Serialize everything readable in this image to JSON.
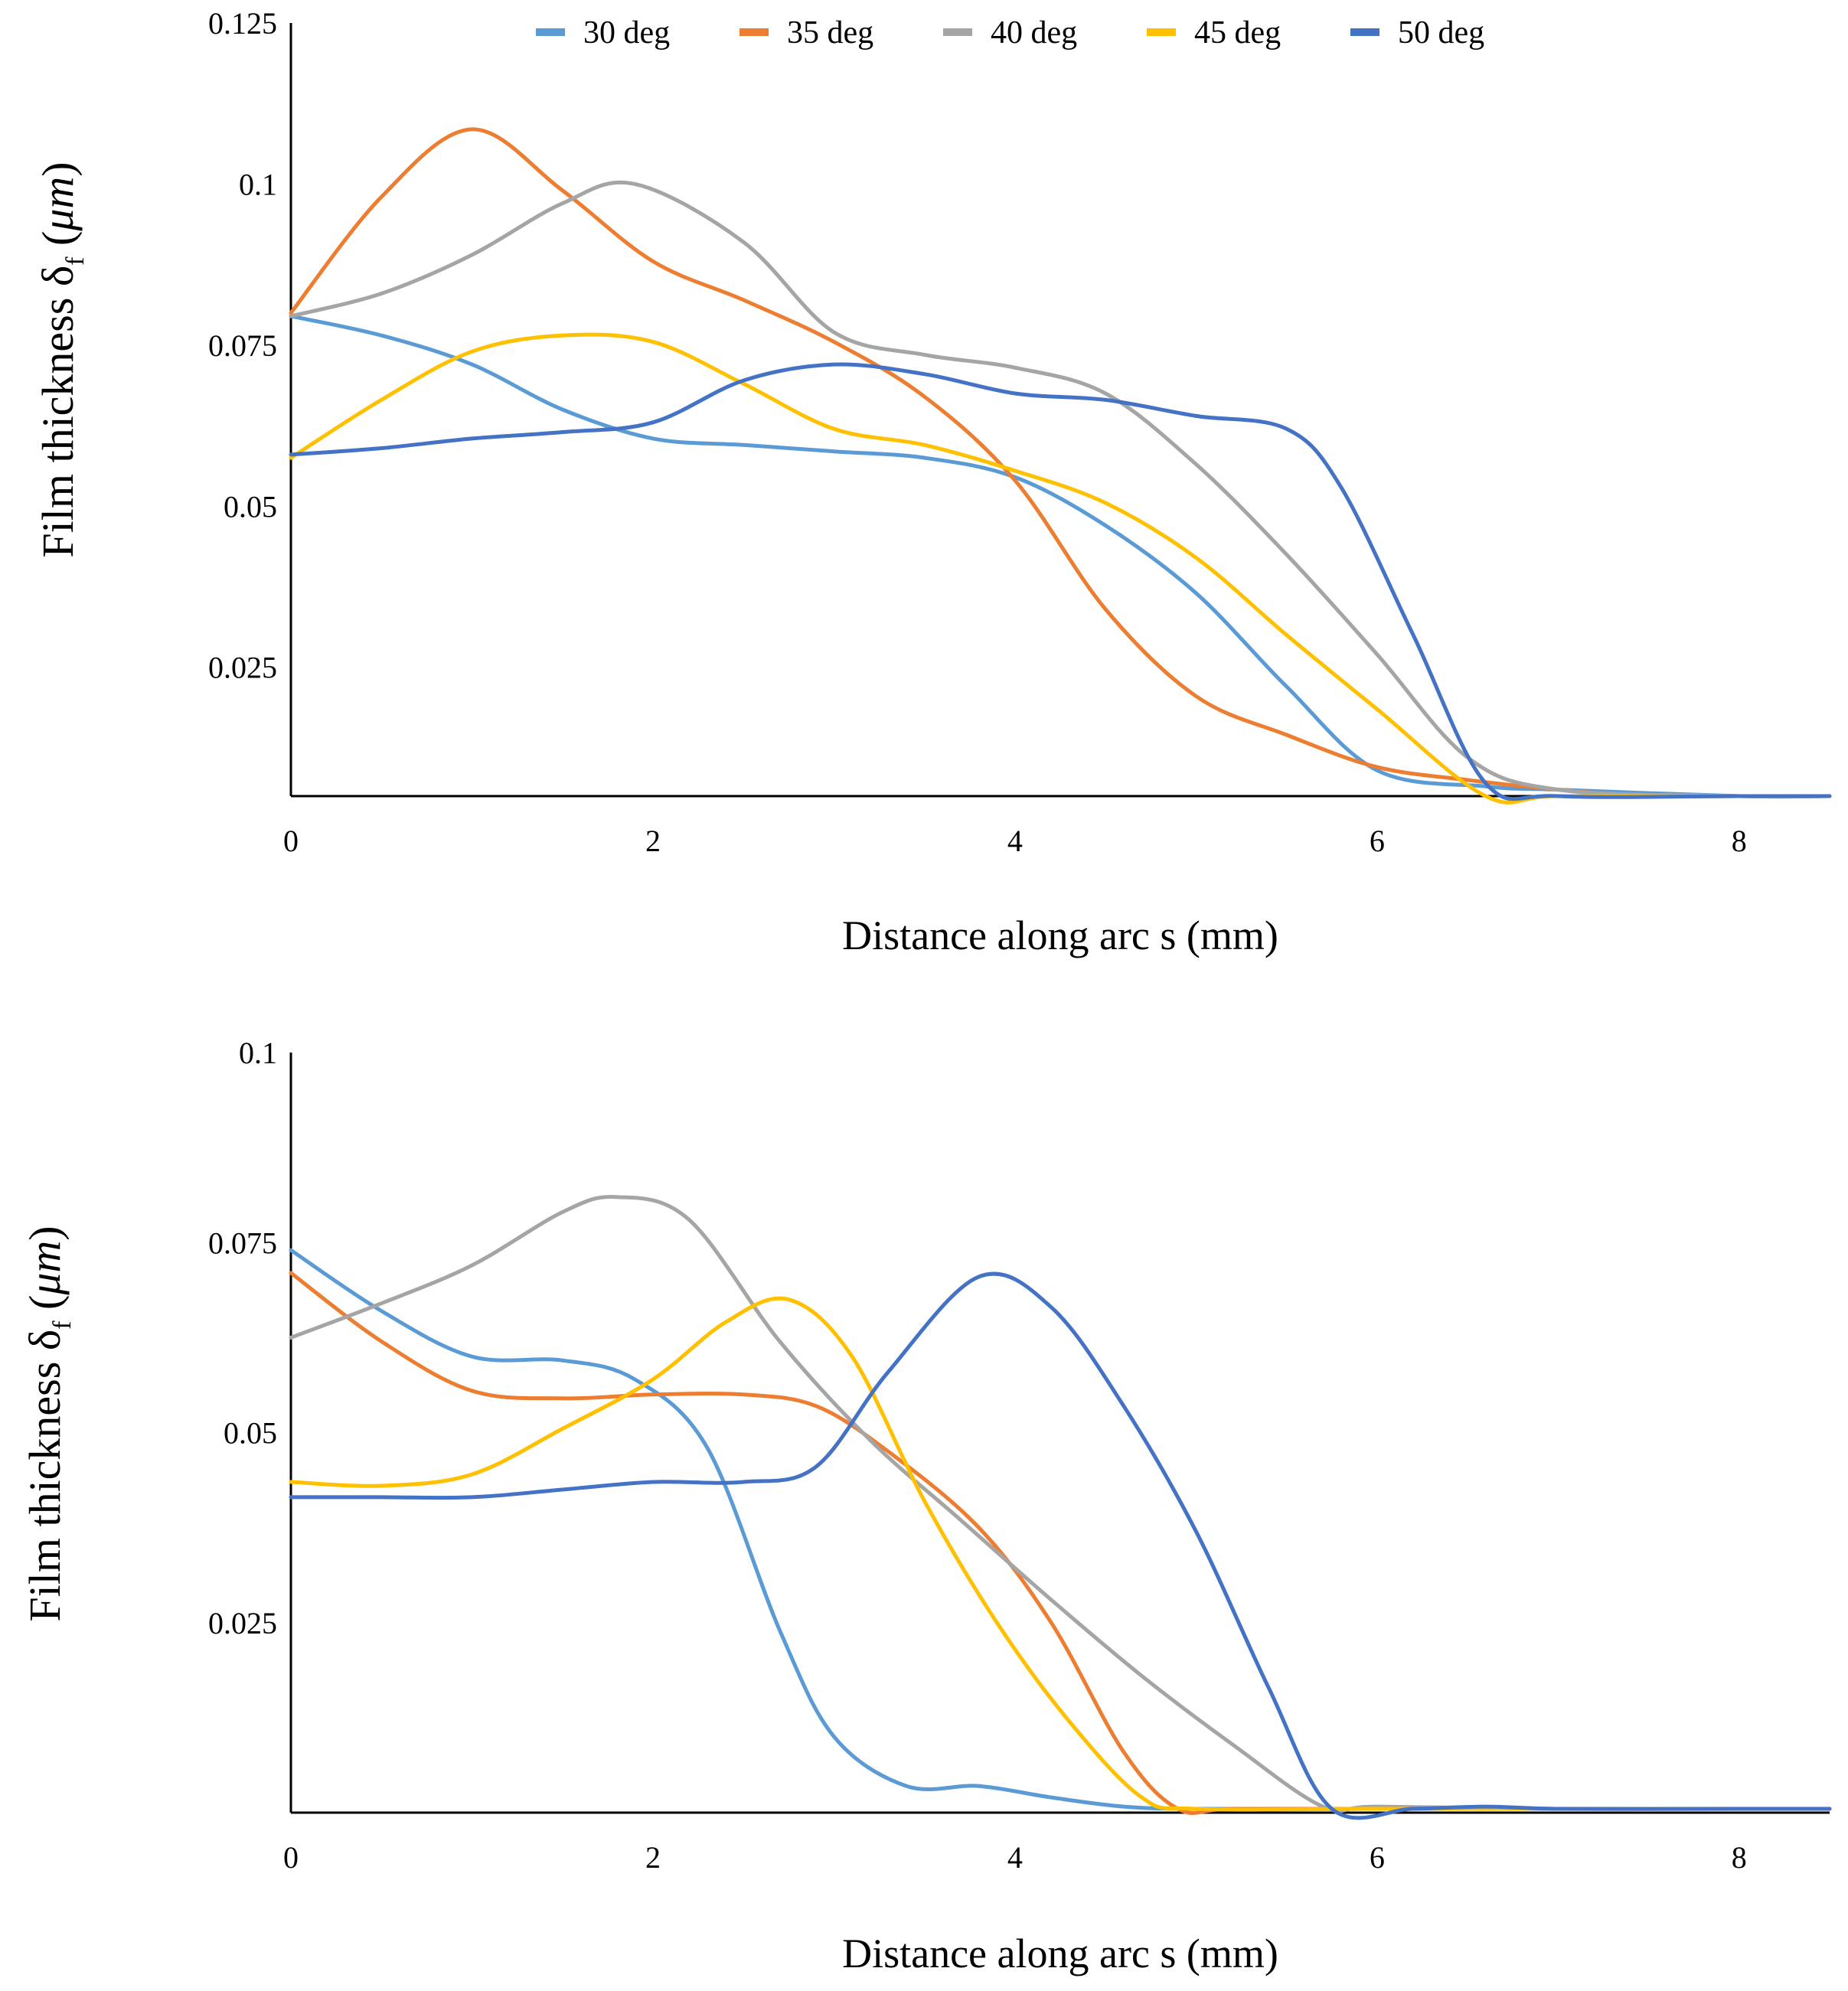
{
  "legend": [
    {
      "label": "30 deg",
      "color": "#5b9bd5"
    },
    {
      "label": "35 deg",
      "color": "#ed7d31"
    },
    {
      "label": "40 deg",
      "color": "#a5a5a5"
    },
    {
      "label": "45 deg",
      "color": "#ffc000"
    },
    {
      "label": "50 deg",
      "color": "#4472c4"
    }
  ],
  "chart_data": [
    {
      "type": "line",
      "title": "",
      "xlabel": "Distance along arc s (mm)",
      "ylabel_parts": [
        "Film thickness δ",
        "f",
        " (",
        "μm",
        ")"
      ],
      "xlim": [
        0,
        8.5
      ],
      "ylim": [
        0.005,
        0.125
      ],
      "xticks": [
        0,
        2,
        4,
        6,
        8
      ],
      "xtick_labels": [
        "0",
        "2",
        "4",
        "6",
        "8"
      ],
      "yticks": [
        0.025,
        0.05,
        0.075,
        0.1,
        0.125
      ],
      "ytick_labels": [
        "0.025",
        "0.05",
        "0.075",
        "0.1",
        "0.125"
      ],
      "series": [
        {
          "name": "30 deg",
          "x": [
            0,
            0.5,
            1,
            1.5,
            2,
            2.5,
            3,
            3.5,
            4,
            4.5,
            5,
            5.5,
            6,
            6.6,
            7,
            8,
            8.5
          ],
          "values": [
            0.0795,
            0.0765,
            0.072,
            0.065,
            0.0605,
            0.0595,
            0.0585,
            0.0575,
            0.0545,
            0.047,
            0.0365,
            0.022,
            0.009,
            0.0065,
            0.006,
            0.005,
            0.005
          ]
        },
        {
          "name": "35 deg",
          "x": [
            0,
            0.5,
            1,
            1.5,
            2,
            2.5,
            3,
            3.5,
            4,
            4.5,
            5,
            5.5,
            6,
            6.5,
            7,
            7.5,
            8,
            8.5
          ],
          "values": [
            0.08,
            0.098,
            0.1085,
            0.099,
            0.088,
            0.082,
            0.0755,
            0.067,
            0.054,
            0.034,
            0.0205,
            0.0145,
            0.0095,
            0.0075,
            0.006,
            0.005,
            0.005,
            0.005
          ]
        },
        {
          "name": "40 deg",
          "x": [
            0,
            0.5,
            1,
            1.5,
            1.9,
            2.5,
            3,
            3.5,
            4,
            4.5,
            5,
            5.5,
            6,
            6.5,
            7,
            8,
            8.5
          ],
          "values": [
            0.0795,
            0.083,
            0.089,
            0.097,
            0.1,
            0.091,
            0.077,
            0.0735,
            0.0715,
            0.0675,
            0.0565,
            0.0425,
            0.027,
            0.011,
            0.006,
            0.005,
            0.005
          ]
        },
        {
          "name": "45 deg",
          "x": [
            0,
            0.5,
            1,
            1.5,
            2,
            2.5,
            3,
            3.5,
            4,
            4.5,
            5,
            5.5,
            6,
            6.6,
            7,
            8,
            8.5
          ],
          "values": [
            0.0575,
            0.0665,
            0.074,
            0.0765,
            0.0755,
            0.069,
            0.062,
            0.0595,
            0.0555,
            0.0505,
            0.042,
            0.03,
            0.0185,
            0.005,
            0.005,
            0.005,
            0.005
          ]
        },
        {
          "name": "50 deg",
          "x": [
            0,
            0.5,
            1,
            1.5,
            2,
            2.5,
            3,
            3.5,
            4,
            4.5,
            5,
            5.5,
            5.8,
            6.2,
            6.6,
            7,
            8,
            8.5
          ],
          "values": [
            0.058,
            0.059,
            0.0605,
            0.0615,
            0.063,
            0.0695,
            0.072,
            0.0705,
            0.0675,
            0.0665,
            0.064,
            0.062,
            0.053,
            0.03,
            0.007,
            0.005,
            0.005,
            0.005
          ]
        }
      ]
    },
    {
      "type": "line",
      "title": "",
      "xlabel": "Distance along arc s (mm)",
      "ylabel_parts": [
        "Film thickness δ",
        "f",
        " (",
        "μm",
        ")"
      ],
      "xlim": [
        0,
        8.5
      ],
      "ylim": [
        0.0,
        0.1
      ],
      "xticks": [
        0,
        2,
        4,
        6,
        8
      ],
      "xtick_labels": [
        "0",
        "2",
        "4",
        "6",
        "8"
      ],
      "yticks": [
        0.025,
        0.05,
        0.075,
        0.1
      ],
      "ytick_labels": [
        "0.025",
        "0.05",
        "0.075",
        "0.1"
      ],
      "series": [
        {
          "name": "30 deg",
          "x": [
            0,
            0.5,
            1,
            1.5,
            1.9,
            2.3,
            2.7,
            3.0,
            3.4,
            3.8,
            4.2,
            4.6,
            5.0,
            6.0,
            7.0,
            8.0,
            8.5
          ],
          "values": [
            0.074,
            0.066,
            0.06,
            0.0595,
            0.057,
            0.048,
            0.024,
            0.01,
            0.0035,
            0.0035,
            0.002,
            0.0008,
            0.0005,
            0.0005,
            0.0005,
            0.0005,
            0.0005
          ]
        },
        {
          "name": "35 deg",
          "x": [
            0,
            0.5,
            1,
            1.5,
            2,
            2.5,
            2.9,
            3.3,
            3.8,
            4.2,
            4.6,
            4.9,
            5.2,
            6,
            7,
            8,
            8.5
          ],
          "values": [
            0.071,
            0.062,
            0.0555,
            0.0545,
            0.055,
            0.055,
            0.0535,
            0.0475,
            0.0375,
            0.025,
            0.008,
            0.0005,
            0.0005,
            0.0005,
            0.0005,
            0.0005,
            0.0005
          ]
        },
        {
          "name": "40 deg",
          "x": [
            0,
            0.5,
            1,
            1.5,
            1.8,
            2.2,
            2.7,
            3.2,
            3.7,
            4.2,
            4.7,
            5.2,
            5.7,
            6,
            7,
            8,
            8.5
          ],
          "values": [
            0.0625,
            0.067,
            0.072,
            0.079,
            0.081,
            0.078,
            0.062,
            0.049,
            0.0385,
            0.028,
            0.018,
            0.009,
            0.0008,
            0.0008,
            0.0005,
            0.0005,
            0.0005
          ]
        },
        {
          "name": "45 deg",
          "x": [
            0,
            0.5,
            1,
            1.5,
            2,
            2.4,
            2.75,
            3.1,
            3.5,
            3.9,
            4.3,
            4.7,
            5.0,
            6,
            7,
            8,
            8.5
          ],
          "values": [
            0.0435,
            0.043,
            0.0445,
            0.0505,
            0.057,
            0.0645,
            0.0675,
            0.06,
            0.041,
            0.025,
            0.012,
            0.002,
            0.0005,
            0.0005,
            0.0005,
            0.0005,
            0.0005
          ]
        },
        {
          "name": "50 deg",
          "x": [
            0,
            0.5,
            1,
            1.5,
            2,
            2.5,
            2.9,
            3.3,
            3.8,
            4.2,
            4.6,
            5.0,
            5.4,
            5.75,
            6.2,
            6.6,
            7,
            8,
            8.5
          ],
          "values": [
            0.0415,
            0.0415,
            0.0415,
            0.0425,
            0.0435,
            0.0435,
            0.0455,
            0.058,
            0.0705,
            0.0665,
            0.0535,
            0.037,
            0.0165,
            0.0005,
            0.0005,
            0.0008,
            0.0005,
            0.0005,
            0.0005
          ]
        }
      ]
    }
  ]
}
